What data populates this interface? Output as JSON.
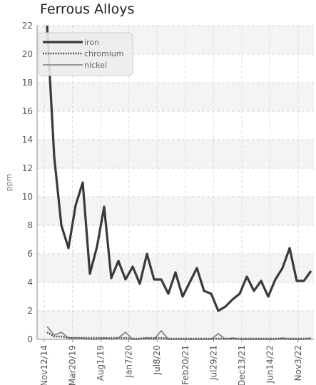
{
  "chart_data": {
    "type": "line",
    "title": "Ferrous Alloys",
    "ylabel": "ppm",
    "xlabel": "",
    "ylim": [
      0,
      22
    ],
    "yticks": [
      0,
      2,
      4,
      6,
      8,
      10,
      12,
      14,
      16,
      18,
      20,
      22
    ],
    "xtick_labels": [
      "Nov12/14",
      "Mar20/19",
      "Aug1/19",
      "Jan7/20",
      "Jul8/20",
      "Feb20/21",
      "Jul29/21",
      "Dec13/21",
      "Jun14/22",
      "Nov3/22"
    ],
    "grid": true,
    "legend": "top-left",
    "series": [
      {
        "name": "iron",
        "color": "#3a3a3a",
        "values": [
          22,
          12.8,
          8,
          6.4,
          9.4,
          11,
          4.6,
          6.5,
          9.3,
          4.3,
          5.5,
          4.2,
          5.1,
          3.9,
          6,
          4.2,
          4.2,
          3.2,
          4.7,
          3,
          4,
          5,
          3.4,
          3.2,
          2,
          2.3,
          2.8,
          3.2,
          4.4,
          3.4,
          4.1,
          3,
          4.2,
          5,
          6.4,
          4.1,
          4.1,
          4.8
        ]
      },
      {
        "name": "chromium",
        "color": "#555555",
        "values": [
          0.5,
          0.2,
          0.2,
          0.1,
          0.1,
          0.1,
          0.1,
          0.1,
          0.1,
          0.1,
          0.1,
          0.1,
          0.05,
          0.05,
          0.1,
          0.1,
          0.1,
          0.05,
          0.05,
          0.05,
          0.05,
          0.05,
          0.05,
          0.05,
          0.05,
          0.05,
          0.05,
          0.05,
          0.05,
          0.05,
          0.05,
          0.05,
          0.05,
          0.05,
          0.05,
          0.05,
          0.05,
          0.05
        ]
      },
      {
        "name": "nickel",
        "color": "#888888",
        "values": [
          0.9,
          0.3,
          0.5,
          0.1,
          0.1,
          0.1,
          0,
          0,
          0.1,
          0,
          0.1,
          0.5,
          0,
          0,
          0.1,
          0,
          0.6,
          0,
          0,
          0,
          0,
          0,
          0,
          0,
          0.4,
          0,
          0.1,
          0,
          0,
          0,
          0,
          0,
          0,
          0.1,
          0,
          0,
          0,
          0.1
        ]
      }
    ]
  }
}
